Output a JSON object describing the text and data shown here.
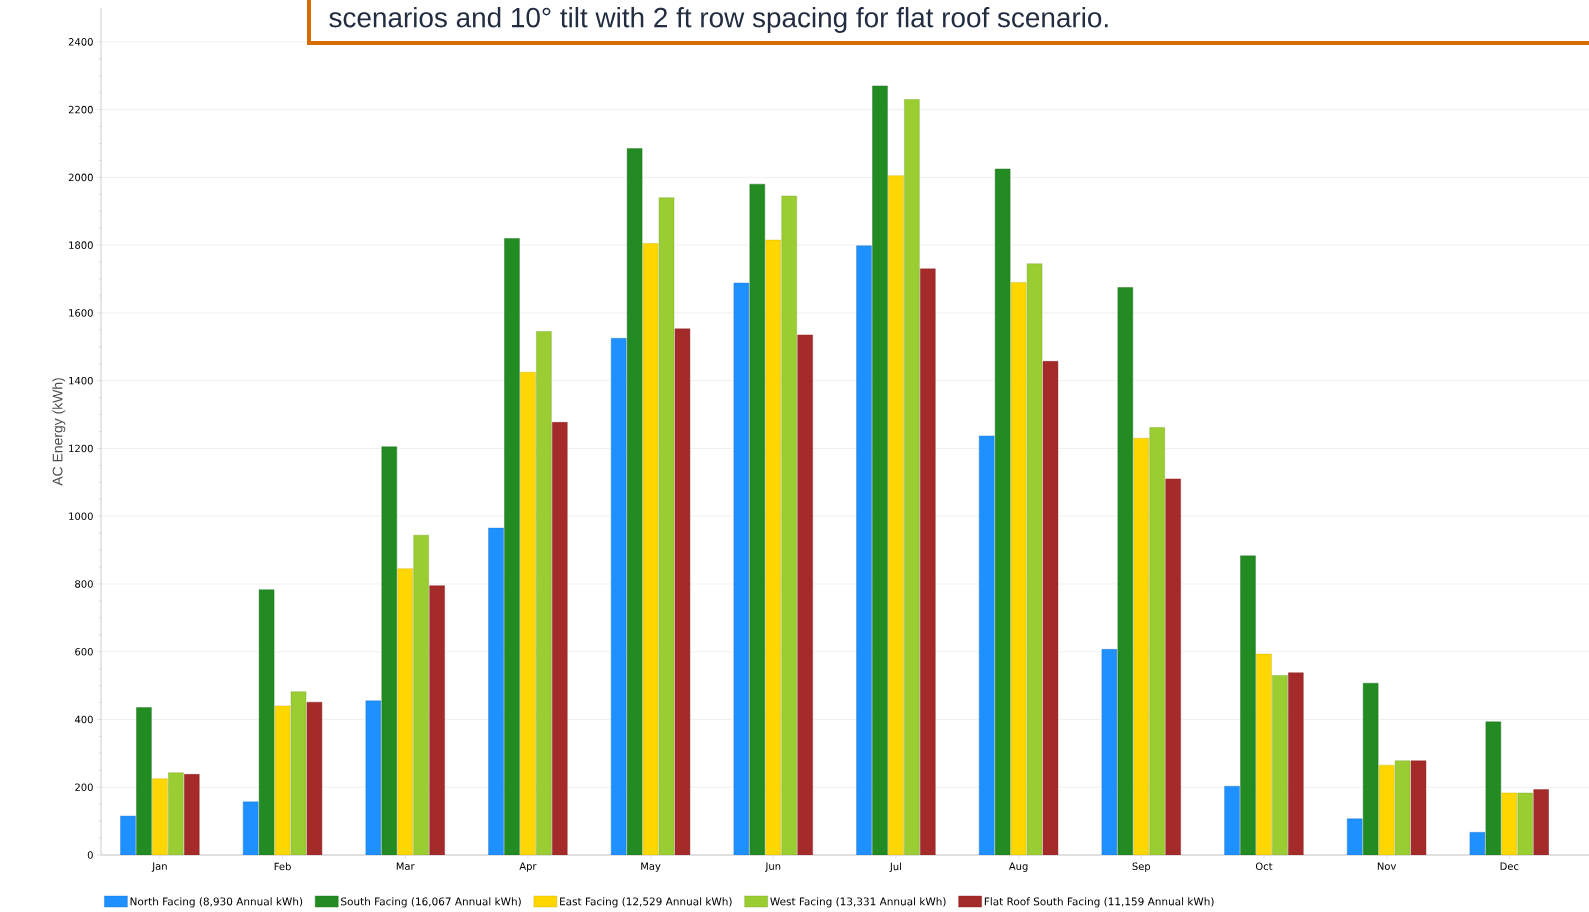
{
  "chart_data": {
    "type": "bar",
    "ylabel": "AC Energy (kWh)",
    "annotations": [
      "scenarios and 10° tilt with 2 ft row spacing for flat roof scenario."
    ],
    "categories": [
      "Jan",
      "Feb",
      "Mar",
      "Apr",
      "May",
      "Jun",
      "Jul",
      "Aug",
      "Sep",
      "Oct",
      "Nov",
      "Dec"
    ],
    "series": [
      {
        "name": "North Facing (8,930 Annual kWh)",
        "color": "#1e90ff",
        "values": [
          115,
          157,
          455,
          965,
          1525,
          1688,
          1798,
          1237,
          607,
          203,
          107,
          67
        ]
      },
      {
        "name": "South Facing (16,067 Annual kWh)",
        "color": "#228b22",
        "values": [
          435,
          783,
          1205,
          1820,
          2085,
          1980,
          2270,
          2025,
          1675,
          883,
          507,
          393
        ]
      },
      {
        "name": "East Facing (12,529 Annual kWh)",
        "color": "#ffd700",
        "values": [
          225,
          440,
          845,
          1425,
          1805,
          1815,
          2005,
          1690,
          1230,
          593,
          265,
          183
        ]
      },
      {
        "name": "West Facing (13,331 Annual kWh)",
        "color": "#9acd32",
        "values": [
          243,
          482,
          944,
          1545,
          1940,
          1945,
          2230,
          1745,
          1262,
          530,
          278,
          183
        ]
      },
      {
        "name": "Flat Roof South Facing (11,159 Annual kWh)",
        "color": "#a52a2a",
        "values": [
          238,
          451,
          795,
          1277,
          1553,
          1535,
          1730,
          1457,
          1110,
          538,
          278,
          193
        ]
      }
    ],
    "ylim": [
      0,
      2500
    ],
    "yticks": [
      0,
      200,
      400,
      600,
      800,
      1000,
      1200,
      1400,
      1600,
      1800,
      2000,
      2200,
      2400
    ],
    "grid": "y",
    "legend": "bottom"
  }
}
